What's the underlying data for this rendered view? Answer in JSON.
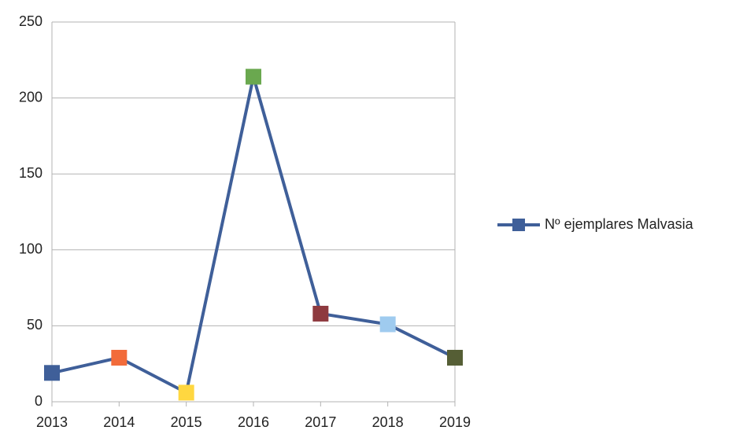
{
  "chart_data": {
    "type": "line",
    "categories": [
      "2013",
      "2014",
      "2015",
      "2016",
      "2017",
      "2018",
      "2019"
    ],
    "series": [
      {
        "name": "Nº ejemplares Malvasia",
        "color": "#3f5f99",
        "values": [
          19,
          29,
          6,
          214,
          58,
          51,
          29
        ],
        "marker_colors": [
          "#3f5f99",
          "#f26b3a",
          "#ffd740",
          "#6aa84f",
          "#8e3a3f",
          "#9fcbef",
          "#555e35"
        ]
      }
    ],
    "ylim": [
      0,
      250
    ],
    "yticks": [
      0,
      50,
      100,
      150,
      200,
      250
    ],
    "grid": true,
    "legend": "right"
  }
}
